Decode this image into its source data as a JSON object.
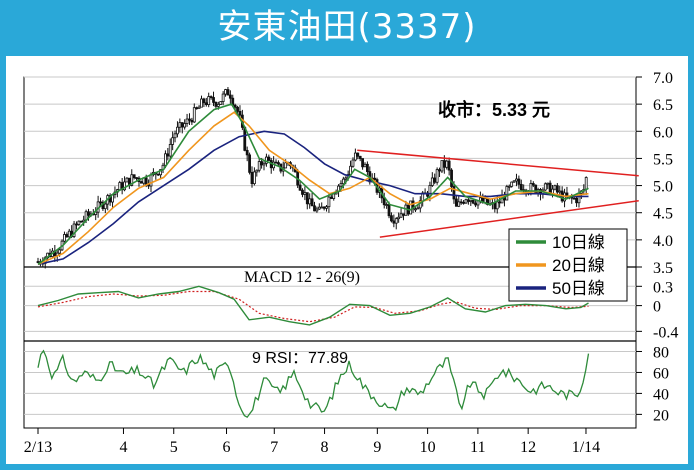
{
  "header": {
    "title": "安東油田(3337)"
  },
  "colors": {
    "frame": "#2aa8d8",
    "ma10": "#2e8b3a",
    "ma20": "#f0961e",
    "ma50": "#1a237e",
    "trend": "#e02020",
    "candle": "#111111",
    "macd": "#2e8b3a",
    "signal": "#d02020",
    "rsi": "#2e8b3a"
  },
  "chart_data": [
    {
      "type": "candlestick",
      "annotation": "收市：5.33 元",
      "y_ticks": [
        "7.0",
        "6.5",
        "6.0",
        "5.5",
        "5.0",
        "4.5",
        "4.0",
        "3.5"
      ],
      "ylim": [
        3.5,
        7.0
      ],
      "x_tick_labels": [
        "2/13",
        "4",
        "5",
        "6",
        "7",
        "8",
        "9",
        "10",
        "11",
        "12",
        "1/14"
      ],
      "legend": [
        {
          "key": "ma10",
          "label": "10日線"
        },
        {
          "key": "ma20",
          "label": "20日線"
        },
        {
          "key": "ma50",
          "label": "50日線"
        }
      ],
      "close_anchors": [
        {
          "m": 0.0,
          "v": 3.6
        },
        {
          "m": 0.4,
          "v": 3.85
        },
        {
          "m": 0.8,
          "v": 4.3
        },
        {
          "m": 1.2,
          "v": 4.6
        },
        {
          "m": 1.6,
          "v": 4.95
        },
        {
          "m": 1.9,
          "v": 5.15
        },
        {
          "m": 2.2,
          "v": 5.1
        },
        {
          "m": 2.5,
          "v": 5.4
        },
        {
          "m": 2.7,
          "v": 5.95
        },
        {
          "m": 3.0,
          "v": 6.2
        },
        {
          "m": 3.3,
          "v": 6.55
        },
        {
          "m": 3.6,
          "v": 6.55
        },
        {
          "m": 3.8,
          "v": 6.75
        },
        {
          "m": 4.0,
          "v": 6.3
        },
        {
          "m": 4.1,
          "v": 5.8
        },
        {
          "m": 4.25,
          "v": 5.1
        },
        {
          "m": 4.5,
          "v": 5.5
        },
        {
          "m": 4.8,
          "v": 5.3
        },
        {
          "m": 5.0,
          "v": 5.45
        },
        {
          "m": 5.2,
          "v": 5.05
        },
        {
          "m": 5.4,
          "v": 4.65
        },
        {
          "m": 5.6,
          "v": 4.5
        },
        {
          "m": 5.9,
          "v": 4.95
        },
        {
          "m": 6.1,
          "v": 5.1
        },
        {
          "m": 6.3,
          "v": 5.55
        },
        {
          "m": 6.5,
          "v": 5.35
        },
        {
          "m": 6.7,
          "v": 5.0
        },
        {
          "m": 6.9,
          "v": 4.7
        },
        {
          "m": 7.05,
          "v": 4.4
        },
        {
          "m": 7.3,
          "v": 4.55
        },
        {
          "m": 7.6,
          "v": 4.7
        },
        {
          "m": 7.8,
          "v": 4.95
        },
        {
          "m": 8.0,
          "v": 5.35
        },
        {
          "m": 8.15,
          "v": 5.4
        },
        {
          "m": 8.3,
          "v": 4.55
        },
        {
          "m": 8.5,
          "v": 4.8
        },
        {
          "m": 8.8,
          "v": 4.7
        },
        {
          "m": 9.1,
          "v": 4.6
        },
        {
          "m": 9.3,
          "v": 4.85
        },
        {
          "m": 9.5,
          "v": 5.05
        },
        {
          "m": 9.8,
          "v": 4.95
        },
        {
          "m": 10.1,
          "v": 4.95
        },
        {
          "m": 10.3,
          "v": 4.9
        },
        {
          "m": 10.5,
          "v": 4.75
        },
        {
          "m": 10.7,
          "v": 4.75
        },
        {
          "m": 10.85,
          "v": 4.9
        },
        {
          "m": 10.95,
          "v": 5.33
        }
      ],
      "ma10": [
        {
          "m": 0.0,
          "v": 3.55
        },
        {
          "m": 0.5,
          "v": 3.9
        },
        {
          "m": 1.0,
          "v": 4.4
        },
        {
          "m": 1.5,
          "v": 4.85
        },
        {
          "m": 2.0,
          "v": 5.1
        },
        {
          "m": 2.5,
          "v": 5.3
        },
        {
          "m": 3.0,
          "v": 6.0
        },
        {
          "m": 3.5,
          "v": 6.4
        },
        {
          "m": 3.85,
          "v": 6.5
        },
        {
          "m": 4.1,
          "v": 6.1
        },
        {
          "m": 4.4,
          "v": 5.5
        },
        {
          "m": 4.8,
          "v": 5.35
        },
        {
          "m": 5.2,
          "v": 5.1
        },
        {
          "m": 5.6,
          "v": 4.75
        },
        {
          "m": 6.0,
          "v": 4.9
        },
        {
          "m": 6.3,
          "v": 5.3
        },
        {
          "m": 6.6,
          "v": 5.15
        },
        {
          "m": 7.0,
          "v": 4.65
        },
        {
          "m": 7.4,
          "v": 4.55
        },
        {
          "m": 7.8,
          "v": 4.8
        },
        {
          "m": 8.15,
          "v": 5.15
        },
        {
          "m": 8.5,
          "v": 4.8
        },
        {
          "m": 9.0,
          "v": 4.65
        },
        {
          "m": 9.5,
          "v": 4.9
        },
        {
          "m": 10.0,
          "v": 4.9
        },
        {
          "m": 10.5,
          "v": 4.75
        },
        {
          "m": 10.95,
          "v": 4.95
        }
      ],
      "ma20": [
        {
          "m": 0.0,
          "v": 3.55
        },
        {
          "m": 0.5,
          "v": 3.75
        },
        {
          "m": 1.0,
          "v": 4.15
        },
        {
          "m": 1.5,
          "v": 4.6
        },
        {
          "m": 2.0,
          "v": 4.95
        },
        {
          "m": 2.5,
          "v": 5.15
        },
        {
          "m": 3.0,
          "v": 5.65
        },
        {
          "m": 3.5,
          "v": 6.1
        },
        {
          "m": 3.9,
          "v": 6.35
        },
        {
          "m": 4.2,
          "v": 6.1
        },
        {
          "m": 4.6,
          "v": 5.65
        },
        {
          "m": 5.0,
          "v": 5.4
        },
        {
          "m": 5.4,
          "v": 5.1
        },
        {
          "m": 5.8,
          "v": 4.85
        },
        {
          "m": 6.2,
          "v": 4.95
        },
        {
          "m": 6.6,
          "v": 5.15
        },
        {
          "m": 7.0,
          "v": 4.85
        },
        {
          "m": 7.4,
          "v": 4.65
        },
        {
          "m": 7.8,
          "v": 4.75
        },
        {
          "m": 8.2,
          "v": 4.95
        },
        {
          "m": 8.6,
          "v": 4.85
        },
        {
          "m": 9.0,
          "v": 4.75
        },
        {
          "m": 9.5,
          "v": 4.85
        },
        {
          "m": 10.0,
          "v": 4.9
        },
        {
          "m": 10.5,
          "v": 4.8
        },
        {
          "m": 10.95,
          "v": 4.85
        }
      ],
      "ma50": [
        {
          "m": 0.0,
          "v": 3.55
        },
        {
          "m": 0.5,
          "v": 3.65
        },
        {
          "m": 1.0,
          "v": 3.95
        },
        {
          "m": 1.5,
          "v": 4.3
        },
        {
          "m": 2.0,
          "v": 4.7
        },
        {
          "m": 2.5,
          "v": 5.0
        },
        {
          "m": 3.0,
          "v": 5.3
        },
        {
          "m": 3.5,
          "v": 5.65
        },
        {
          "m": 4.0,
          "v": 5.9
        },
        {
          "m": 4.5,
          "v": 6.0
        },
        {
          "m": 4.9,
          "v": 5.95
        },
        {
          "m": 5.3,
          "v": 5.7
        },
        {
          "m": 5.7,
          "v": 5.4
        },
        {
          "m": 6.1,
          "v": 5.2
        },
        {
          "m": 6.5,
          "v": 5.1
        },
        {
          "m": 7.0,
          "v": 5.0
        },
        {
          "m": 7.5,
          "v": 4.85
        },
        {
          "m": 8.0,
          "v": 4.85
        },
        {
          "m": 8.5,
          "v": 4.8
        },
        {
          "m": 9.0,
          "v": 4.8
        },
        {
          "m": 9.5,
          "v": 4.85
        },
        {
          "m": 10.0,
          "v": 4.85
        },
        {
          "m": 10.5,
          "v": 4.8
        },
        {
          "m": 10.95,
          "v": 4.8
        }
      ],
      "trendlines": [
        {
          "from": {
            "m": 6.35,
            "v": 5.65
          },
          "to": {
            "m": 11.95,
            "v": 5.18
          }
        },
        {
          "from": {
            "m": 6.8,
            "v": 4.05
          },
          "to": {
            "m": 11.95,
            "v": 4.72
          }
        }
      ]
    },
    {
      "type": "line",
      "title": "MACD 12 - 26(9)",
      "y_ticks": [
        "0.3",
        "0",
        "-0.4"
      ],
      "ylim": [
        -0.55,
        0.6
      ],
      "series": [
        {
          "key": "macd",
          "points": [
            {
              "m": 0.0,
              "v": 0.0
            },
            {
              "m": 0.4,
              "v": 0.08
            },
            {
              "m": 0.8,
              "v": 0.18
            },
            {
              "m": 1.2,
              "v": 0.2
            },
            {
              "m": 1.6,
              "v": 0.22
            },
            {
              "m": 2.0,
              "v": 0.12
            },
            {
              "m": 2.4,
              "v": 0.18
            },
            {
              "m": 2.8,
              "v": 0.22
            },
            {
              "m": 3.2,
              "v": 0.3
            },
            {
              "m": 3.6,
              "v": 0.2
            },
            {
              "m": 3.9,
              "v": 0.1
            },
            {
              "m": 4.2,
              "v": -0.22
            },
            {
              "m": 4.6,
              "v": -0.18
            },
            {
              "m": 5.0,
              "v": -0.25
            },
            {
              "m": 5.4,
              "v": -0.3
            },
            {
              "m": 5.8,
              "v": -0.18
            },
            {
              "m": 6.2,
              "v": 0.02
            },
            {
              "m": 6.6,
              "v": 0.0
            },
            {
              "m": 7.0,
              "v": -0.15
            },
            {
              "m": 7.4,
              "v": -0.12
            },
            {
              "m": 7.8,
              "v": -0.02
            },
            {
              "m": 8.15,
              "v": 0.12
            },
            {
              "m": 8.5,
              "v": -0.05
            },
            {
              "m": 8.9,
              "v": -0.1
            },
            {
              "m": 9.3,
              "v": 0.0
            },
            {
              "m": 9.7,
              "v": 0.02
            },
            {
              "m": 10.1,
              "v": 0.0
            },
            {
              "m": 10.5,
              "v": -0.05
            },
            {
              "m": 10.8,
              "v": -0.03
            },
            {
              "m": 10.95,
              "v": 0.04
            }
          ]
        },
        {
          "key": "signal",
          "points": [
            {
              "m": 0.0,
              "v": -0.02
            },
            {
              "m": 0.5,
              "v": 0.05
            },
            {
              "m": 1.0,
              "v": 0.14
            },
            {
              "m": 1.5,
              "v": 0.18
            },
            {
              "m": 2.0,
              "v": 0.15
            },
            {
              "m": 2.5,
              "v": 0.16
            },
            {
              "m": 3.0,
              "v": 0.22
            },
            {
              "m": 3.5,
              "v": 0.22
            },
            {
              "m": 4.0,
              "v": 0.1
            },
            {
              "m": 4.4,
              "v": -0.12
            },
            {
              "m": 4.9,
              "v": -0.2
            },
            {
              "m": 5.4,
              "v": -0.25
            },
            {
              "m": 5.9,
              "v": -0.18
            },
            {
              "m": 6.3,
              "v": -0.02
            },
            {
              "m": 6.7,
              "v": -0.03
            },
            {
              "m": 7.1,
              "v": -0.12
            },
            {
              "m": 7.6,
              "v": -0.08
            },
            {
              "m": 8.0,
              "v": 0.02
            },
            {
              "m": 8.3,
              "v": 0.06
            },
            {
              "m": 8.7,
              "v": -0.04
            },
            {
              "m": 9.1,
              "v": -0.06
            },
            {
              "m": 9.6,
              "v": 0.0
            },
            {
              "m": 10.1,
              "v": 0.0
            },
            {
              "m": 10.6,
              "v": -0.03
            },
            {
              "m": 10.95,
              "v": -0.01
            }
          ]
        }
      ]
    },
    {
      "type": "line",
      "title": "9 RSI：77.89",
      "y_ticks": [
        "80",
        "60",
        "40",
        "20"
      ],
      "ylim": [
        7,
        90
      ],
      "series": [
        {
          "key": "rsi",
          "last_value": 77.89,
          "points": [
            {
              "m": 0.0,
              "v": 65
            },
            {
              "m": 0.1,
              "v": 85
            },
            {
              "m": 0.3,
              "v": 55
            },
            {
              "m": 0.5,
              "v": 72
            },
            {
              "m": 0.7,
              "v": 50
            },
            {
              "m": 0.9,
              "v": 60
            },
            {
              "m": 1.2,
              "v": 52
            },
            {
              "m": 1.4,
              "v": 68
            },
            {
              "m": 1.7,
              "v": 58
            },
            {
              "m": 2.0,
              "v": 62
            },
            {
              "m": 2.3,
              "v": 48
            },
            {
              "m": 2.6,
              "v": 72
            },
            {
              "m": 2.9,
              "v": 60
            },
            {
              "m": 3.2,
              "v": 75
            },
            {
              "m": 3.5,
              "v": 58
            },
            {
              "m": 3.8,
              "v": 70
            },
            {
              "m": 4.0,
              "v": 30
            },
            {
              "m": 4.2,
              "v": 18
            },
            {
              "m": 4.5,
              "v": 52
            },
            {
              "m": 4.8,
              "v": 40
            },
            {
              "m": 5.1,
              "v": 60
            },
            {
              "m": 5.4,
              "v": 30
            },
            {
              "m": 5.7,
              "v": 22
            },
            {
              "m": 6.0,
              "v": 55
            },
            {
              "m": 6.2,
              "v": 68
            },
            {
              "m": 6.5,
              "v": 45
            },
            {
              "m": 6.8,
              "v": 32
            },
            {
              "m": 7.05,
              "v": 22
            },
            {
              "m": 7.3,
              "v": 45
            },
            {
              "m": 7.6,
              "v": 40
            },
            {
              "m": 7.9,
              "v": 60
            },
            {
              "m": 8.15,
              "v": 72
            },
            {
              "m": 8.4,
              "v": 25
            },
            {
              "m": 8.6,
              "v": 50
            },
            {
              "m": 8.9,
              "v": 38
            },
            {
              "m": 9.2,
              "v": 62
            },
            {
              "m": 9.5,
              "v": 55
            },
            {
              "m": 9.8,
              "v": 42
            },
            {
              "m": 10.1,
              "v": 48
            },
            {
              "m": 10.4,
              "v": 40
            },
            {
              "m": 10.7,
              "v": 38
            },
            {
              "m": 10.8,
              "v": 45
            },
            {
              "m": 10.9,
              "v": 68
            },
            {
              "m": 10.95,
              "v": 78
            }
          ]
        }
      ]
    }
  ]
}
